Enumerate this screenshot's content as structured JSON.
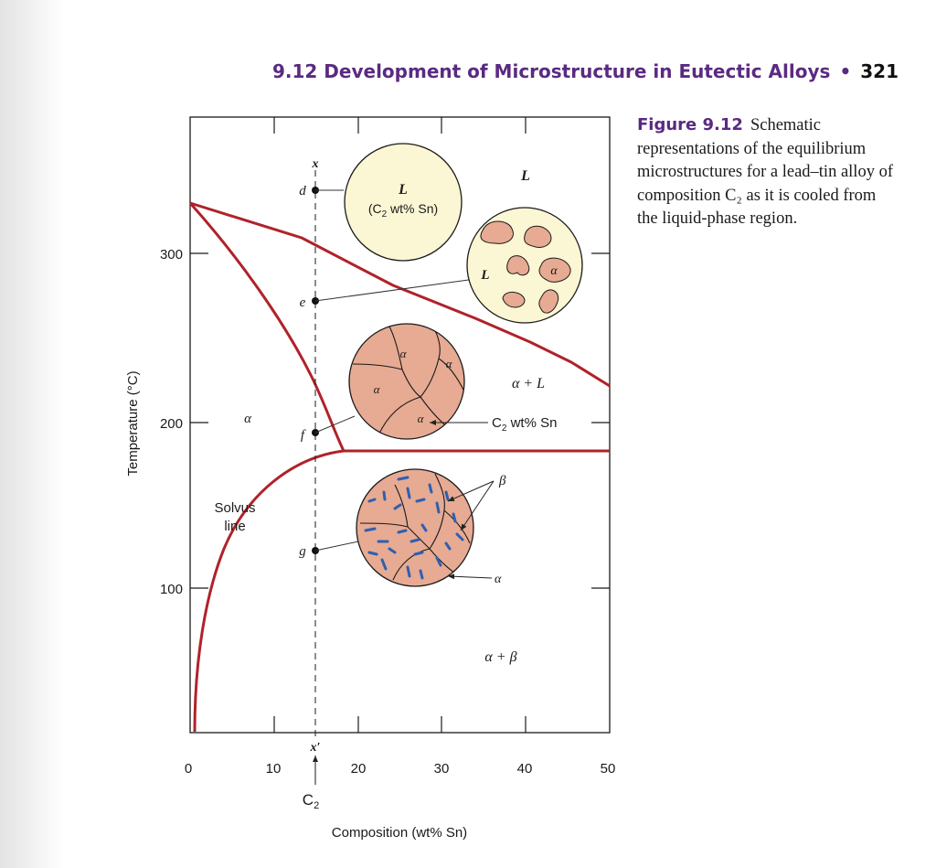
{
  "header": {
    "title": "9.12 Development of Microstructure in Eutectic Alloys",
    "separator": "•",
    "page_number": "321"
  },
  "caption": {
    "figure_label": "Figure 9.12",
    "text": "Schematic representations of the equilibrium microstructures for a lead–tin alloy of composition C₂ as it is cooled from the liquid-phase region."
  },
  "axes": {
    "xlabel": "Composition (wt% Sn)",
    "ylabel": "Temperature (°C)",
    "x_ticks": [
      "0",
      "10",
      "20",
      "30",
      "40",
      "50"
    ],
    "y_ticks": [
      "100",
      "200",
      "300"
    ],
    "x_range": [
      0,
      50
    ],
    "y_range": [
      0,
      330
    ]
  },
  "regions": {
    "alpha": "α",
    "alpha_plus_L": "α + L",
    "alpha_plus_beta": "α + β",
    "L": "L"
  },
  "labels": {
    "solvus_line_1": "Solvus",
    "solvus_line_2": "line",
    "composition_x": "x",
    "composition_x_prime": "x′",
    "c2_marker": "C2",
    "c2_base": "C",
    "c2_sub": "2",
    "point_d": "d",
    "point_e": "e",
    "point_f": "f",
    "point_g": "g"
  },
  "microstructures": {
    "d": {
      "phase": "L",
      "comp_prefix": "(C",
      "comp_sub": "2",
      "comp_suffix": " wt% Sn)"
    },
    "e": {
      "phase_L": "L",
      "phase_alpha": "α"
    },
    "f": {
      "grain_label": "α",
      "pointer_prefix": "C",
      "pointer_sub": "2",
      "pointer_suffix": " wt% Sn"
    },
    "g": {
      "beta_label": "β",
      "alpha_label": "α"
    }
  },
  "colors": {
    "phase_line": "#b0222a",
    "liquid": "#fbf6d3",
    "alpha_grain": "#e7aa93",
    "beta_particle": "#2f5fb0",
    "header": "#5a2a82"
  }
}
